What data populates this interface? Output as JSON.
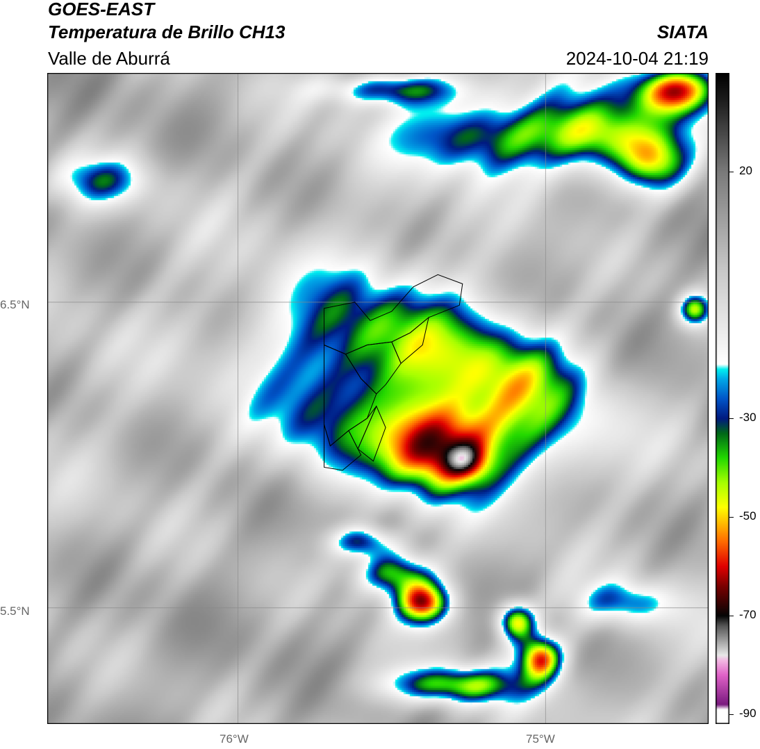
{
  "header": {
    "satellite": "GOES-EAST",
    "product": "Temperatura de Brillo CH13",
    "region": "Valle de Aburrá",
    "agency": "SIATA",
    "datetime": "2024-10-04 21:19"
  },
  "map": {
    "lon_range": [
      -76.62,
      -74.47
    ],
    "lat_range": [
      5.12,
      7.25
    ],
    "lon_ticks": [
      {
        "value": -76,
        "label": "76°W"
      },
      {
        "value": -75,
        "label": "75°W"
      }
    ],
    "lat_ticks": [
      {
        "value": 6.5,
        "label": "6.5°N"
      },
      {
        "value": 5.5,
        "label": "5.5°N"
      }
    ],
    "grid": true,
    "variable": "brightness temperature (°C)"
  },
  "colorbar": {
    "min": -92,
    "max": 40,
    "ticks": [
      20,
      -30,
      -50,
      -70,
      -90
    ],
    "tick_labels": [
      "20",
      "-30",
      "-50",
      "-70",
      "-90"
    ],
    "stops": [
      {
        "t": -92,
        "color": "#ffffff"
      },
      {
        "t": -89,
        "color": "#ffffff"
      },
      {
        "t": -88,
        "color": "#7a1a7f"
      },
      {
        "t": -82,
        "color": "#e062c8"
      },
      {
        "t": -79,
        "color": "#f3b9e3"
      },
      {
        "t": -78,
        "color": "#e8e8e8"
      },
      {
        "t": -72,
        "color": "#555555"
      },
      {
        "t": -70,
        "color": "#050505"
      },
      {
        "t": -64,
        "color": "#7a0000"
      },
      {
        "t": -60,
        "color": "#e00000"
      },
      {
        "t": -55,
        "color": "#ff6a00"
      },
      {
        "t": -51,
        "color": "#ffc000"
      },
      {
        "t": -48,
        "color": "#ffff00"
      },
      {
        "t": -43,
        "color": "#a6ff00"
      },
      {
        "t": -38,
        "color": "#22d800"
      },
      {
        "t": -33,
        "color": "#006818"
      },
      {
        "t": -30,
        "color": "#001a80"
      },
      {
        "t": -26,
        "color": "#0055c8"
      },
      {
        "t": -22,
        "color": "#00a8e8"
      },
      {
        "t": -20,
        "color": "#00f0f0"
      },
      {
        "t": -19,
        "color": "#ffffff"
      },
      {
        "t": 0,
        "color": "#c8c8c8"
      },
      {
        "t": 20,
        "color": "#7a7a7a"
      },
      {
        "t": 35,
        "color": "#1a1a1a"
      },
      {
        "t": 40,
        "color": "#000000"
      }
    ]
  },
  "cloud_cells": [
    {
      "lon": -75.36,
      "lat": 6.02,
      "sx": 0.18,
      "sy": 0.15,
      "amp": -58
    },
    {
      "lon": -75.26,
      "lat": 5.98,
      "sx": 0.07,
      "sy": 0.06,
      "amp": -18
    },
    {
      "lon": -75.12,
      "lat": 6.3,
      "sx": 0.22,
      "sy": 0.16,
      "amp": -22
    },
    {
      "lon": -75.55,
      "lat": 6.38,
      "sx": 0.35,
      "sy": 0.22,
      "amp": -40
    },
    {
      "lon": -75.1,
      "lat": 6.1,
      "sx": 0.32,
      "sy": 0.22,
      "amp": -35
    },
    {
      "lon": -75.72,
      "lat": 6.1,
      "sx": 0.2,
      "sy": 0.18,
      "amp": -25
    },
    {
      "lon": -75.4,
      "lat": 5.52,
      "sx": 0.09,
      "sy": 0.07,
      "amp": -62
    },
    {
      "lon": -75.02,
      "lat": 5.34,
      "sx": 0.07,
      "sy": 0.07,
      "amp": -58
    },
    {
      "lon": -75.1,
      "lat": 5.46,
      "sx": 0.06,
      "sy": 0.06,
      "amp": -55
    },
    {
      "lon": -75.5,
      "lat": 5.62,
      "sx": 0.12,
      "sy": 0.07,
      "amp": -48
    },
    {
      "lon": -75.3,
      "lat": 5.25,
      "sx": 0.22,
      "sy": 0.06,
      "amp": -45
    },
    {
      "lon": -75.6,
      "lat": 5.72,
      "sx": 0.1,
      "sy": 0.05,
      "amp": -40
    },
    {
      "lon": -74.58,
      "lat": 7.2,
      "sx": 0.14,
      "sy": 0.08,
      "amp": -60
    },
    {
      "lon": -74.82,
      "lat": 7.05,
      "sx": 0.2,
      "sy": 0.12,
      "amp": -45
    },
    {
      "lon": -75.2,
      "lat": 7.05,
      "sx": 0.25,
      "sy": 0.12,
      "amp": -40
    },
    {
      "lon": -74.65,
      "lat": 6.95,
      "sx": 0.12,
      "sy": 0.1,
      "amp": -38
    },
    {
      "lon": -75.5,
      "lat": 7.2,
      "sx": 0.22,
      "sy": 0.05,
      "amp": -35
    },
    {
      "lon": -76.45,
      "lat": 6.9,
      "sx": 0.15,
      "sy": 0.08,
      "amp": -28
    },
    {
      "lon": -74.75,
      "lat": 5.52,
      "sx": 0.15,
      "sy": 0.07,
      "amp": -28
    },
    {
      "lon": -74.52,
      "lat": 6.48,
      "sx": 0.05,
      "sy": 0.05,
      "amp": -45
    }
  ],
  "boundary_polygons": [
    [
      [
        -75.72,
        6.48
      ],
      [
        -75.62,
        6.5
      ],
      [
        -75.57,
        6.44
      ],
      [
        -75.5,
        6.47
      ],
      [
        -75.43,
        6.55
      ],
      [
        -75.35,
        6.59
      ],
      [
        -75.27,
        6.56
      ],
      [
        -75.28,
        6.49
      ],
      [
        -75.38,
        6.45
      ],
      [
        -75.44,
        6.4
      ],
      [
        -75.5,
        6.37
      ],
      [
        -75.58,
        6.36
      ],
      [
        -75.65,
        6.33
      ],
      [
        -75.72,
        6.36
      ]
    ],
    [
      [
        -75.72,
        6.36
      ],
      [
        -75.65,
        6.33
      ],
      [
        -75.6,
        6.25
      ],
      [
        -75.55,
        6.2
      ],
      [
        -75.58,
        6.12
      ],
      [
        -75.64,
        6.08
      ],
      [
        -75.7,
        6.03
      ],
      [
        -75.72,
        6.1
      ]
    ],
    [
      [
        -75.65,
        6.33
      ],
      [
        -75.58,
        6.36
      ],
      [
        -75.5,
        6.37
      ],
      [
        -75.47,
        6.3
      ],
      [
        -75.52,
        6.23
      ],
      [
        -75.55,
        6.2
      ],
      [
        -75.6,
        6.25
      ]
    ],
    [
      [
        -75.5,
        6.37
      ],
      [
        -75.44,
        6.4
      ],
      [
        -75.38,
        6.45
      ],
      [
        -75.4,
        6.36
      ],
      [
        -75.47,
        6.3
      ]
    ],
    [
      [
        -75.72,
        6.1
      ],
      [
        -75.7,
        6.03
      ],
      [
        -75.64,
        6.08
      ],
      [
        -75.6,
        6.0
      ],
      [
        -75.66,
        5.95
      ],
      [
        -75.72,
        5.96
      ]
    ],
    [
      [
        -75.64,
        6.08
      ],
      [
        -75.58,
        6.12
      ],
      [
        -75.55,
        6.16
      ],
      [
        -75.61,
        6.02
      ]
    ],
    [
      [
        -75.61,
        6.02
      ],
      [
        -75.55,
        6.16
      ],
      [
        -75.52,
        6.09
      ],
      [
        -75.56,
        5.98
      ]
    ]
  ]
}
